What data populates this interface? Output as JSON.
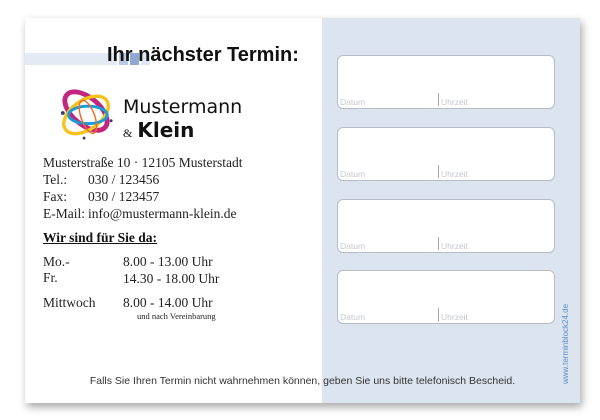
{
  "title": "Ihr nächster Termin:",
  "brand": {
    "line1": "Mustermann",
    "amp": "&",
    "line2": "Klein"
  },
  "address": {
    "street": "Musterstraße 10  ·  12105 Musterstadt",
    "tel_label": "Tel.:",
    "tel": "030 / 123456",
    "fax_label": "Fax:",
    "fax": "030 / 123457",
    "email_label": "E-Mail:",
    "email": "info@mustermann-klein.de"
  },
  "hours": {
    "heading": "Wir sind für Sie da:",
    "rows": [
      {
        "day": "Mo.-Fr.",
        "time": "8.00 - 13.00 Uhr"
      },
      {
        "day": "",
        "time": "14.30 - 18.00 Uhr"
      },
      {
        "day": "Mittwoch",
        "time": "8.00 - 14.00 Uhr"
      }
    ],
    "note": "und nach Vereinbarung"
  },
  "appointments": [
    {
      "date_label": "Datum",
      "time_label": "Uhrzeit"
    },
    {
      "date_label": "Datum",
      "time_label": "Uhrzeit"
    },
    {
      "date_label": "Datum",
      "time_label": "Uhrzeit"
    },
    {
      "date_label": "Datum",
      "time_label": "Uhrzeit"
    }
  ],
  "footer": "Falls Sie Ihren Termin nicht wahrnehmen können, geben Sie uns bitte telefonisch Bescheid.",
  "url": "www.terminblock24.de",
  "colors": {
    "panel": "#dce4f0",
    "accent": "#5a8ec6"
  }
}
